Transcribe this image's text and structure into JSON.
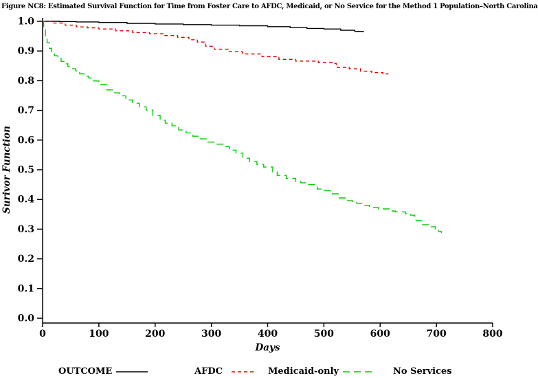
{
  "chart_data": {
    "type": "line",
    "subtype": "step-survival",
    "title": "Figure NC8: Estimated Survival Function for Time from Foster Care to AFDC, Medicaid, or No Service for the Method 1 Population–North Carolina",
    "xlabel": "Days",
    "ylabel": "Surivor Function",
    "xlim": [
      0,
      800
    ],
    "ylim": [
      0.0,
      1.0
    ],
    "grid": false,
    "background": "#ffffff",
    "axis_color": "#000000",
    "x_ticks": {
      "values": [
        0,
        100,
        200,
        300,
        400,
        500,
        600,
        700,
        800
      ],
      "labels": [
        "0",
        "100",
        "200",
        "300",
        "400",
        "500",
        "600",
        "700",
        "800"
      ]
    },
    "y_ticks": {
      "values": [
        0.0,
        0.1,
        0.2,
        0.3,
        0.4,
        0.5,
        0.6,
        0.7,
        0.8,
        0.9,
        1.0
      ],
      "labels": [
        "0.0",
        "0.1",
        "0.2",
        "0.3",
        "0.4",
        "0.5",
        "0.6",
        "0.7",
        "0.8",
        "0.9",
        "1.0"
      ]
    },
    "legend": {
      "title": "OUTCOME",
      "position": "bottom"
    },
    "series": [
      {
        "name": "AFDC",
        "color": "#000000",
        "line_style": "solid",
        "dash": null,
        "points": [
          [
            0,
            1.0
          ],
          [
            30,
            0.999
          ],
          [
            60,
            0.998
          ],
          [
            100,
            0.996
          ],
          [
            150,
            0.993
          ],
          [
            200,
            0.991
          ],
          [
            250,
            0.989
          ],
          [
            300,
            0.987
          ],
          [
            350,
            0.985
          ],
          [
            400,
            0.982
          ],
          [
            440,
            0.979
          ],
          [
            470,
            0.976
          ],
          [
            500,
            0.974
          ],
          [
            530,
            0.97
          ],
          [
            555,
            0.966
          ],
          [
            570,
            0.963
          ]
        ]
      },
      {
        "name": "Medicaid-only",
        "color": "#e60000",
        "line_style": "dashed",
        "dash": [
          5,
          4
        ],
        "points": [
          [
            0,
            1.0
          ],
          [
            20,
            0.994
          ],
          [
            40,
            0.987
          ],
          [
            60,
            0.981
          ],
          [
            80,
            0.978
          ],
          [
            100,
            0.974
          ],
          [
            130,
            0.968
          ],
          [
            160,
            0.962
          ],
          [
            190,
            0.958
          ],
          [
            215,
            0.952
          ],
          [
            240,
            0.946
          ],
          [
            260,
            0.938
          ],
          [
            275,
            0.93
          ],
          [
            290,
            0.916
          ],
          [
            305,
            0.906
          ],
          [
            330,
            0.898
          ],
          [
            355,
            0.89
          ],
          [
            390,
            0.881
          ],
          [
            420,
            0.872
          ],
          [
            450,
            0.866
          ],
          [
            490,
            0.861
          ],
          [
            515,
            0.858
          ],
          [
            522,
            0.845
          ],
          [
            545,
            0.84
          ],
          [
            565,
            0.832
          ],
          [
            585,
            0.827
          ],
          [
            605,
            0.823
          ],
          [
            614,
            0.821
          ]
        ]
      },
      {
        "name": "No Services",
        "color": "#00cc00",
        "line_style": "dashed",
        "dash": [
          10,
          6
        ],
        "points": [
          [
            0,
            1.0
          ],
          [
            2,
            0.972
          ],
          [
            5,
            0.948
          ],
          [
            8,
            0.928
          ],
          [
            12,
            0.909
          ],
          [
            16,
            0.895
          ],
          [
            21,
            0.884
          ],
          [
            27,
            0.874
          ],
          [
            33,
            0.865
          ],
          [
            39,
            0.857
          ],
          [
            45,
            0.847
          ],
          [
            52,
            0.84
          ],
          [
            59,
            0.833
          ],
          [
            66,
            0.823
          ],
          [
            74,
            0.815
          ],
          [
            82,
            0.809
          ],
          [
            91,
            0.799
          ],
          [
            100,
            0.787
          ],
          [
            114,
            0.769
          ],
          [
            126,
            0.759
          ],
          [
            137,
            0.749
          ],
          [
            148,
            0.735
          ],
          [
            160,
            0.724
          ],
          [
            172,
            0.712
          ],
          [
            184,
            0.701
          ],
          [
            196,
            0.683
          ],
          [
            209,
            0.667
          ],
          [
            218,
            0.657
          ],
          [
            230,
            0.648
          ],
          [
            242,
            0.634
          ],
          [
            255,
            0.624
          ],
          [
            267,
            0.613
          ],
          [
            281,
            0.604
          ],
          [
            294,
            0.593
          ],
          [
            308,
            0.586
          ],
          [
            321,
            0.578
          ],
          [
            332,
            0.566
          ],
          [
            344,
            0.556
          ],
          [
            356,
            0.539
          ],
          [
            368,
            0.528
          ],
          [
            381,
            0.518
          ],
          [
            393,
            0.509
          ],
          [
            409,
            0.493
          ],
          [
            417,
            0.481
          ],
          [
            433,
            0.471
          ],
          [
            450,
            0.461
          ],
          [
            459,
            0.456
          ],
          [
            472,
            0.45
          ],
          [
            488,
            0.435
          ],
          [
            501,
            0.43
          ],
          [
            511,
            0.419
          ],
          [
            527,
            0.405
          ],
          [
            538,
            0.396
          ],
          [
            551,
            0.393
          ],
          [
            558,
            0.387
          ],
          [
            570,
            0.38
          ],
          [
            581,
            0.373
          ],
          [
            597,
            0.368
          ],
          [
            617,
            0.361
          ],
          [
            627,
            0.358
          ],
          [
            645,
            0.352
          ],
          [
            654,
            0.347
          ],
          [
            661,
            0.344
          ],
          [
            664,
            0.329
          ],
          [
            674,
            0.315
          ],
          [
            686,
            0.308
          ],
          [
            698,
            0.3
          ],
          [
            704,
            0.292
          ],
          [
            709,
            0.287
          ]
        ]
      }
    ]
  }
}
